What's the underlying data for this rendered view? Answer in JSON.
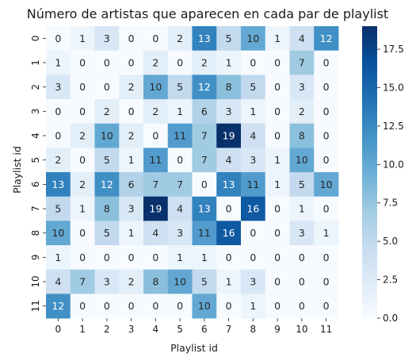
{
  "chart_data": {
    "type": "heatmap",
    "title": "Número de artistas que aparecen en cada par de playlist",
    "xlabel": "Playlist id",
    "ylabel": "Playlist id",
    "x_categories": [
      "0",
      "1",
      "2",
      "3",
      "4",
      "5",
      "6",
      "7",
      "8",
      "9",
      "10",
      "11"
    ],
    "y_categories": [
      "0",
      "1",
      "2",
      "3",
      "4",
      "5",
      "6",
      "7",
      "8",
      "9",
      "10",
      "11"
    ],
    "values": [
      [
        0,
        1,
        3,
        0,
        0,
        2,
        13,
        5,
        10,
        1,
        4,
        12
      ],
      [
        1,
        0,
        0,
        0,
        2,
        0,
        2,
        1,
        0,
        0,
        7,
        0
      ],
      [
        3,
        0,
        0,
        2,
        10,
        5,
        12,
        8,
        5,
        0,
        3,
        0
      ],
      [
        0,
        0,
        2,
        0,
        2,
        1,
        6,
        3,
        1,
        0,
        2,
        0
      ],
      [
        0,
        2,
        10,
        2,
        0,
        11,
        7,
        19,
        4,
        0,
        8,
        0
      ],
      [
        2,
        0,
        5,
        1,
        11,
        0,
        7,
        4,
        3,
        1,
        10,
        0
      ],
      [
        13,
        2,
        12,
        6,
        7,
        7,
        0,
        13,
        11,
        1,
        5,
        10
      ],
      [
        5,
        1,
        8,
        3,
        19,
        4,
        13,
        0,
        16,
        0,
        1,
        0
      ],
      [
        10,
        0,
        5,
        1,
        4,
        3,
        11,
        16,
        0,
        0,
        3,
        1
      ],
      [
        1,
        0,
        0,
        0,
        0,
        1,
        1,
        0,
        0,
        0,
        0,
        0
      ],
      [
        4,
        7,
        3,
        2,
        8,
        10,
        5,
        1,
        3,
        0,
        0,
        0
      ],
      [
        12,
        0,
        0,
        0,
        0,
        0,
        10,
        0,
        1,
        0,
        0,
        0
      ]
    ],
    "colormap": "Blues",
    "color_range": [
      0,
      19
    ],
    "colorbar_ticks": [
      "0.0",
      "2.5",
      "5.0",
      "7.5",
      "10.0",
      "12.5",
      "15.0",
      "17.5"
    ],
    "colorbar_tick_values": [
      0,
      2.5,
      5,
      7.5,
      10,
      12.5,
      15,
      17.5
    ],
    "annotated": true
  }
}
